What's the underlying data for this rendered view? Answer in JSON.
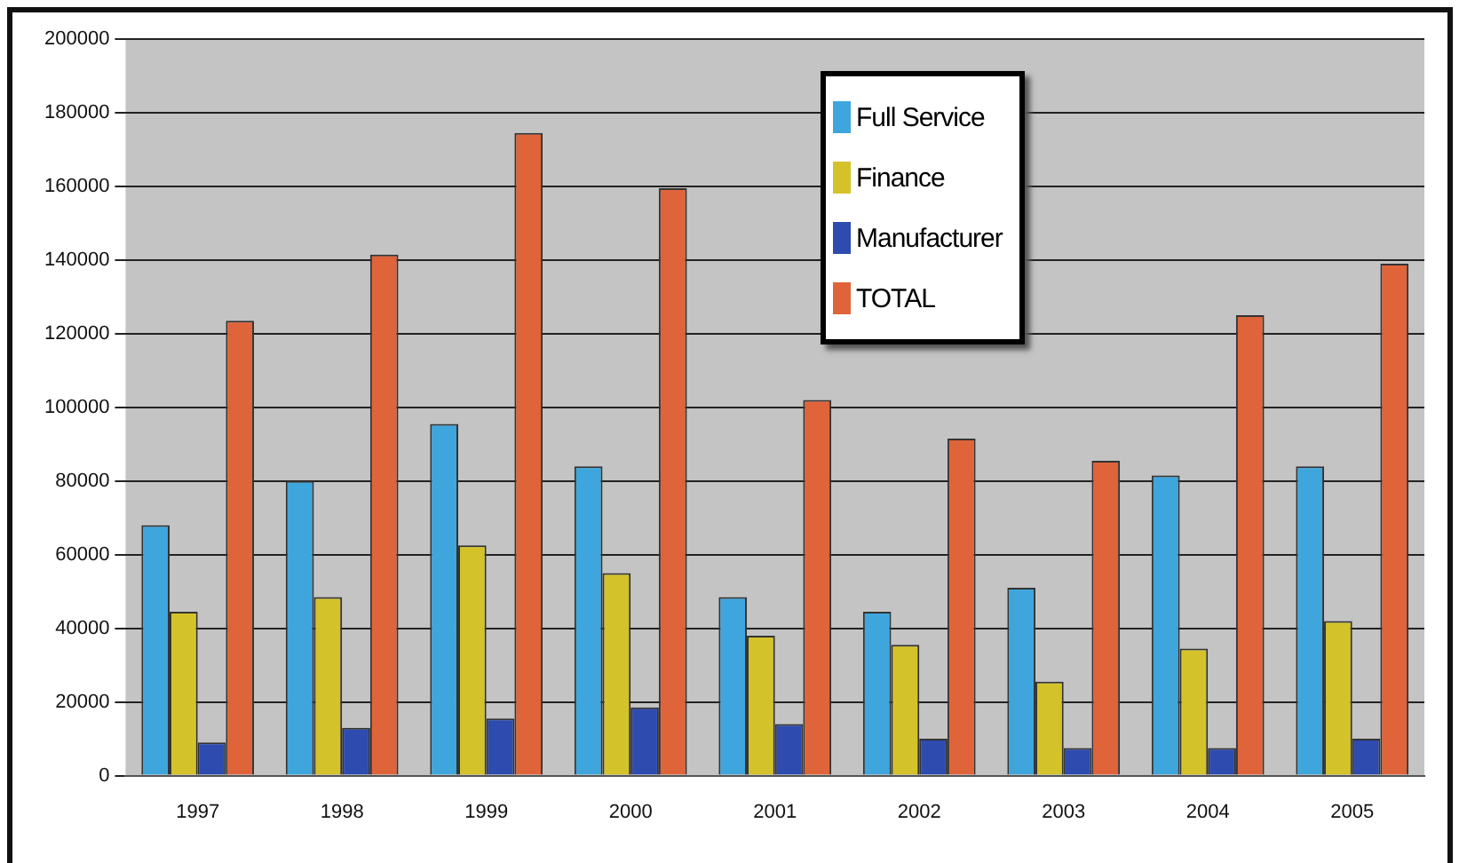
{
  "chart_data": {
    "type": "bar",
    "categories": [
      "1997",
      "1998",
      "1999",
      "2000",
      "2001",
      "2002",
      "2003",
      "2004",
      "2005"
    ],
    "series": [
      {
        "name": "Full Service",
        "color": "#3ea6dd",
        "values": [
          68000,
          80000,
          95500,
          84000,
          48500,
          44500,
          51000,
          81500,
          84000
        ]
      },
      {
        "name": "Finance",
        "color": "#d4c22a",
        "values": [
          44500,
          48500,
          62500,
          55000,
          38000,
          35500,
          25500,
          34500,
          42000
        ]
      },
      {
        "name": "Manufacturer",
        "color": "#2e4bb0",
        "values": [
          9000,
          13000,
          15500,
          18500,
          14000,
          10000,
          7500,
          7500,
          10000
        ]
      },
      {
        "name": "TOTAL",
        "color": "#e0643a",
        "values": [
          123500,
          141500,
          174500,
          159500,
          102000,
          91500,
          85500,
          125000,
          139000
        ]
      }
    ],
    "ylim": [
      0,
      200000
    ],
    "yticks": [
      0,
      20000,
      40000,
      60000,
      80000,
      100000,
      120000,
      140000,
      160000,
      180000,
      200000
    ],
    "grid": "y",
    "legend": "top"
  }
}
